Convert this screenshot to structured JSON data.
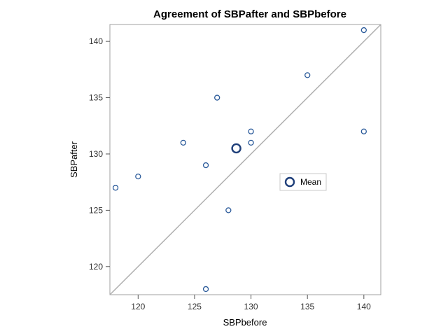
{
  "chart_data": {
    "type": "scatter",
    "title": "Agreement of SBPafter and SBPbefore",
    "xlabel": "SBPbefore",
    "ylabel": "SBPafter",
    "xlim": [
      117.5,
      141.5
    ],
    "ylim": [
      117.5,
      141.5
    ],
    "xticks": [
      120,
      125,
      130,
      135,
      140
    ],
    "yticks": [
      120,
      125,
      130,
      135,
      140
    ],
    "grid": false,
    "reference_line": "y = x",
    "points": [
      {
        "x": 118,
        "y": 127
      },
      {
        "x": 120,
        "y": 128
      },
      {
        "x": 124,
        "y": 131
      },
      {
        "x": 126,
        "y": 129
      },
      {
        "x": 126,
        "y": 118
      },
      {
        "x": 127,
        "y": 135
      },
      {
        "x": 128,
        "y": 125
      },
      {
        "x": 130,
        "y": 132
      },
      {
        "x": 130,
        "y": 131
      },
      {
        "x": 135,
        "y": 137
      },
      {
        "x": 140,
        "y": 141
      },
      {
        "x": 140,
        "y": 132
      }
    ],
    "mean": {
      "x": 128.7,
      "y": 130.5
    },
    "legend": {
      "label": "Mean",
      "position": "inside-right"
    },
    "colors": {
      "marker": "#2a5a9a",
      "mean": "#1f3f7a",
      "diagonal": "#b0b0b0",
      "frame": "#a0a0a0"
    }
  }
}
